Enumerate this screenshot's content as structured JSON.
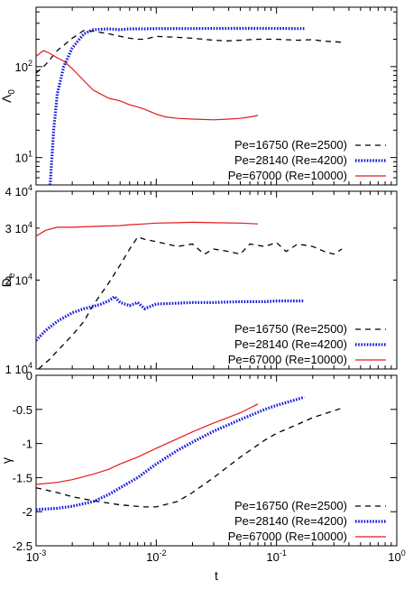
{
  "chart_data": [
    {
      "type": "line",
      "xscale": "log",
      "yscale": "log",
      "xlim": [
        0.001,
        1
      ],
      "ylim": [
        5,
        450
      ],
      "xlabel": "",
      "ylabel": "Λ",
      "ylabel_sub": "0",
      "yticks": [
        {
          "value": 10,
          "base": "10",
          "exp": "1"
        },
        {
          "value": 100,
          "base": "10",
          "exp": "2"
        }
      ],
      "legend_position": "bottom-right",
      "series": [
        {
          "name": "Pe=16750 (Re=2500)",
          "color": "#000000",
          "style": "dashed",
          "points": [
            [
              0.001,
              85
            ],
            [
              0.0012,
              105
            ],
            [
              0.0015,
              150
            ],
            [
              0.002,
              205
            ],
            [
              0.0025,
              250
            ],
            [
              0.003,
              245
            ],
            [
              0.004,
              230
            ],
            [
              0.005,
              215
            ],
            [
              0.006,
              205
            ],
            [
              0.007,
              200
            ],
            [
              0.008,
              200
            ],
            [
              0.01,
              215
            ],
            [
              0.015,
              210
            ],
            [
              0.02,
              205
            ],
            [
              0.03,
              195
            ],
            [
              0.04,
              192
            ],
            [
              0.05,
              195
            ],
            [
              0.07,
              200
            ],
            [
              0.1,
              200
            ],
            [
              0.15,
              195
            ],
            [
              0.2,
              198
            ],
            [
              0.25,
              190
            ],
            [
              0.3,
              188
            ],
            [
              0.35,
              185
            ]
          ]
        },
        {
          "name": "Pe=28140 (Re=4200)",
          "color": "#1515e0",
          "style": "dotted",
          "points": [
            [
              0.00131,
              5
            ],
            [
              0.0014,
              20
            ],
            [
              0.0015,
              50
            ],
            [
              0.0017,
              100
            ],
            [
              0.002,
              160
            ],
            [
              0.0025,
              230
            ],
            [
              0.003,
              255
            ],
            [
              0.004,
              260
            ],
            [
              0.005,
              255
            ],
            [
              0.006,
              260
            ],
            [
              0.008,
              260
            ],
            [
              0.01,
              262
            ],
            [
              0.015,
              262
            ],
            [
              0.02,
              262
            ],
            [
              0.03,
              263
            ],
            [
              0.05,
              263
            ],
            [
              0.08,
              263
            ],
            [
              0.1,
              263
            ],
            [
              0.15,
              262
            ],
            [
              0.17,
              262
            ]
          ]
        },
        {
          "name": "Pe=67000 (Re=10000)",
          "color": "#e41a1c",
          "style": "solid",
          "points": [
            [
              0.001,
              130
            ],
            [
              0.00115,
              150
            ],
            [
              0.0013,
              140
            ],
            [
              0.0015,
              125
            ],
            [
              0.0017,
              115
            ],
            [
              0.002,
              95
            ],
            [
              0.0025,
              70
            ],
            [
              0.003,
              55
            ],
            [
              0.004,
              45
            ],
            [
              0.005,
              42
            ],
            [
              0.006,
              38
            ],
            [
              0.007,
              36
            ],
            [
              0.008,
              34
            ],
            [
              0.01,
              30
            ],
            [
              0.012,
              28
            ],
            [
              0.015,
              27
            ],
            [
              0.02,
              26.5
            ],
            [
              0.03,
              26
            ],
            [
              0.04,
              26.5
            ],
            [
              0.05,
              27
            ],
            [
              0.06,
              28
            ],
            [
              0.07,
              29
            ]
          ]
        }
      ]
    },
    {
      "type": "line",
      "xscale": "log",
      "yscale": "log",
      "xlim": [
        0.001,
        1
      ],
      "ylim": [
        10000,
        40000
      ],
      "xlabel": "",
      "ylabel": "D",
      "ylabel_sub": "e",
      "yticks": [
        {
          "value": 10000,
          "base": "1 10",
          "exp": "4"
        },
        {
          "value": 20000,
          "base": "2 10",
          "exp": "4"
        },
        {
          "value": 30000,
          "base": "3 10",
          "exp": "4"
        },
        {
          "value": 40000,
          "base": "4 10",
          "exp": "4"
        }
      ],
      "legend_position": "bottom-right",
      "series": [
        {
          "name": "Pe=16750 (Re=2500)",
          "color": "#000000",
          "style": "dashed",
          "points": [
            [
              0.00105,
              10000
            ],
            [
              0.0013,
              10800
            ],
            [
              0.0015,
              11500
            ],
            [
              0.002,
              13000
            ],
            [
              0.0025,
              14500
            ],
            [
              0.003,
              16500
            ],
            [
              0.004,
              19500
            ],
            [
              0.005,
              22500
            ],
            [
              0.006,
              25500
            ],
            [
              0.007,
              28000
            ],
            [
              0.008,
              27500
            ],
            [
              0.01,
              27000
            ],
            [
              0.015,
              26000
            ],
            [
              0.02,
              26500
            ],
            [
              0.025,
              24500
            ],
            [
              0.03,
              25500
            ],
            [
              0.04,
              25000
            ],
            [
              0.05,
              24500
            ],
            [
              0.06,
              26500
            ],
            [
              0.08,
              26000
            ],
            [
              0.1,
              26800
            ],
            [
              0.12,
              25000
            ],
            [
              0.15,
              26500
            ],
            [
              0.2,
              26000
            ],
            [
              0.25,
              25000
            ],
            [
              0.3,
              24500
            ],
            [
              0.35,
              25500
            ]
          ]
        },
        {
          "name": "Pe=28140 (Re=4200)",
          "color": "#1515e0",
          "style": "dotted",
          "points": [
            [
              0.001,
              12500
            ],
            [
              0.0012,
              13500
            ],
            [
              0.0015,
              14500
            ],
            [
              0.002,
              15500
            ],
            [
              0.0025,
              16000
            ],
            [
              0.003,
              16300
            ],
            [
              0.0035,
              16600
            ],
            [
              0.004,
              17000
            ],
            [
              0.0045,
              17600
            ],
            [
              0.005,
              16800
            ],
            [
              0.006,
              16400
            ],
            [
              0.007,
              16800
            ],
            [
              0.008,
              16000
            ],
            [
              0.01,
              16600
            ],
            [
              0.015,
              16700
            ],
            [
              0.02,
              16800
            ],
            [
              0.03,
              16800
            ],
            [
              0.05,
              16900
            ],
            [
              0.08,
              16900
            ],
            [
              0.1,
              17000
            ],
            [
              0.15,
              17000
            ],
            [
              0.17,
              17000
            ]
          ]
        },
        {
          "name": "Pe=67000 (Re=10000)",
          "color": "#e41a1c",
          "style": "solid",
          "points": [
            [
              0.001,
              28200
            ],
            [
              0.0012,
              29500
            ],
            [
              0.0015,
              30200
            ],
            [
              0.002,
              30200
            ],
            [
              0.003,
              30400
            ],
            [
              0.004,
              30500
            ],
            [
              0.005,
              30600
            ],
            [
              0.006,
              30800
            ],
            [
              0.008,
              31000
            ],
            [
              0.01,
              31200
            ],
            [
              0.015,
              31300
            ],
            [
              0.02,
              31400
            ],
            [
              0.03,
              31300
            ],
            [
              0.05,
              31200
            ],
            [
              0.07,
              31000
            ]
          ]
        }
      ]
    },
    {
      "type": "line",
      "xscale": "log",
      "yscale": "linear",
      "xlim": [
        0.001,
        1
      ],
      "ylim": [
        -2.5,
        0
      ],
      "xlabel": "t",
      "ylabel": "γ",
      "ylabel_sub": "",
      "xticks": [
        {
          "value": 0.001,
          "base": "10",
          "exp": "-3"
        },
        {
          "value": 0.01,
          "base": "10",
          "exp": "-2"
        },
        {
          "value": 0.1,
          "base": "10",
          "exp": "-1"
        },
        {
          "value": 1,
          "base": "10",
          "exp": "0"
        }
      ],
      "yticks": [
        {
          "value": 0,
          "label": "0"
        },
        {
          "value": -0.5,
          "label": "-0.5"
        },
        {
          "value": -1,
          "label": "-1"
        },
        {
          "value": -1.5,
          "label": "-1.5"
        },
        {
          "value": -2,
          "label": "-2"
        },
        {
          "value": -2.5,
          "label": "-2.5"
        }
      ],
      "legend_position": "bottom-right",
      "series": [
        {
          "name": "Pe=16750 (Re=2500)",
          "color": "#000000",
          "style": "dashed",
          "points": [
            [
              0.001,
              -1.65
            ],
            [
              0.0015,
              -1.72
            ],
            [
              0.002,
              -1.78
            ],
            [
              0.003,
              -1.84
            ],
            [
              0.005,
              -1.9
            ],
            [
              0.008,
              -1.93
            ],
            [
              0.01,
              -1.93
            ],
            [
              0.015,
              -1.85
            ],
            [
              0.02,
              -1.72
            ],
            [
              0.03,
              -1.5
            ],
            [
              0.05,
              -1.2
            ],
            [
              0.08,
              -0.95
            ],
            [
              0.1,
              -0.85
            ],
            [
              0.15,
              -0.72
            ],
            [
              0.2,
              -0.62
            ],
            [
              0.3,
              -0.52
            ],
            [
              0.35,
              -0.48
            ]
          ]
        },
        {
          "name": "Pe=28140 (Re=4200)",
          "color": "#1515e0",
          "style": "dotted",
          "points": [
            [
              0.001,
              -1.97
            ],
            [
              0.0015,
              -1.95
            ],
            [
              0.002,
              -1.92
            ],
            [
              0.003,
              -1.85
            ],
            [
              0.004,
              -1.75
            ],
            [
              0.005,
              -1.65
            ],
            [
              0.007,
              -1.5
            ],
            [
              0.01,
              -1.3
            ],
            [
              0.015,
              -1.1
            ],
            [
              0.02,
              -0.98
            ],
            [
              0.03,
              -0.82
            ],
            [
              0.05,
              -0.65
            ],
            [
              0.08,
              -0.5
            ],
            [
              0.1,
              -0.44
            ],
            [
              0.15,
              -0.35
            ],
            [
              0.17,
              -0.32
            ]
          ]
        },
        {
          "name": "Pe=67000 (Re=10000)",
          "color": "#e41a1c",
          "style": "solid",
          "points": [
            [
              0.001,
              -1.6
            ],
            [
              0.0015,
              -1.57
            ],
            [
              0.002,
              -1.53
            ],
            [
              0.003,
              -1.45
            ],
            [
              0.004,
              -1.38
            ],
            [
              0.005,
              -1.3
            ],
            [
              0.007,
              -1.2
            ],
            [
              0.01,
              -1.07
            ],
            [
              0.015,
              -0.93
            ],
            [
              0.02,
              -0.83
            ],
            [
              0.03,
              -0.7
            ],
            [
              0.05,
              -0.55
            ],
            [
              0.07,
              -0.42
            ]
          ]
        }
      ]
    }
  ]
}
